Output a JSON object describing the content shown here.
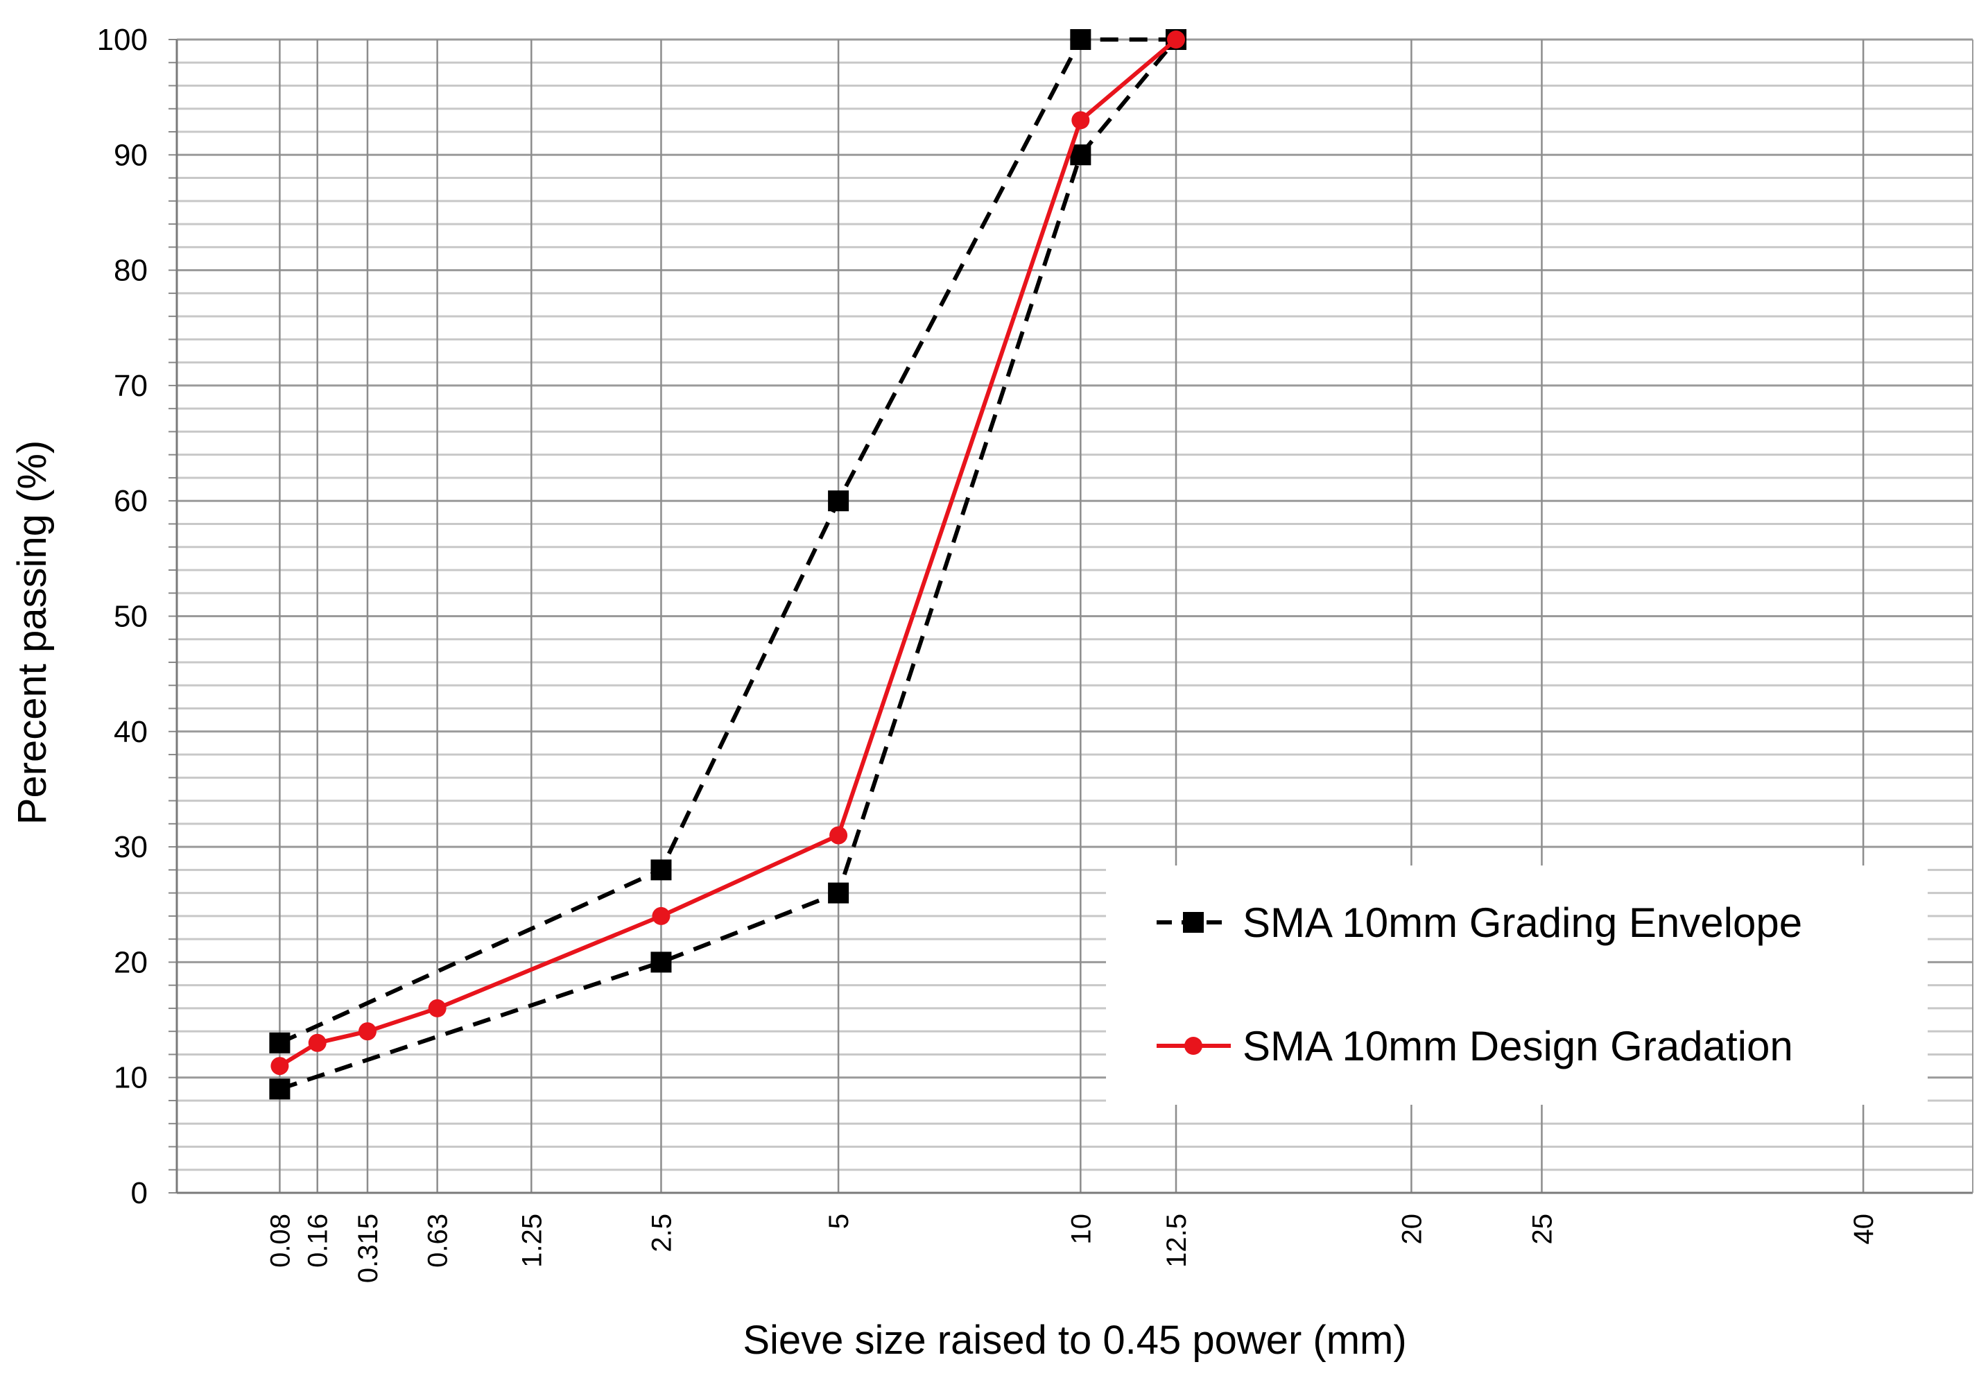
{
  "chart_data": {
    "type": "line",
    "title": "",
    "xlabel": "Sieve size raised to 0.45 power  (mm)",
    "ylabel": "Perecent passing (%)",
    "x_scale": "power 0.45",
    "xlim": [
      0,
      46
    ],
    "ylim": [
      0,
      100
    ],
    "yticks": [
      0,
      10,
      20,
      30,
      40,
      50,
      60,
      70,
      80,
      90,
      100
    ],
    "y_minor_step": 2,
    "grid": true,
    "x_ticks": [
      {
        "value": 0.08,
        "label": "0.08"
      },
      {
        "value": 0.16,
        "label": "0.16"
      },
      {
        "value": 0.315,
        "label": "0.315"
      },
      {
        "value": 0.63,
        "label": "0.63"
      },
      {
        "value": 1.25,
        "label": "1.25"
      },
      {
        "value": 2.5,
        "label": "2.5"
      },
      {
        "value": 5,
        "label": "5"
      },
      {
        "value": 10,
        "label": "10"
      },
      {
        "value": 12.5,
        "label": "12.5"
      },
      {
        "value": 20,
        "label": "20"
      },
      {
        "value": 25,
        "label": "25"
      },
      {
        "value": 40,
        "label": "40"
      }
    ],
    "legend_position": "lower-right",
    "series": [
      {
        "name": "SMA 10mm Grading Envelope",
        "style": "dashed",
        "marker": "square",
        "color": "#000000",
        "part": "lower",
        "x": [
          0.08,
          2.5,
          5,
          10,
          12.5
        ],
        "y": [
          9,
          20,
          26,
          90,
          100
        ]
      },
      {
        "name": "SMA 10mm Grading Envelope",
        "style": "dashed",
        "marker": "square",
        "color": "#000000",
        "part": "upper",
        "x": [
          0.08,
          2.5,
          5,
          10,
          12.5
        ],
        "y": [
          13,
          28,
          60,
          100,
          100
        ]
      },
      {
        "name": "SMA 10mm Design Gradation",
        "style": "solid",
        "marker": "circle",
        "color": "#e8141c",
        "x": [
          0.08,
          0.16,
          0.315,
          0.63,
          2.5,
          5,
          10,
          12.5
        ],
        "y": [
          11,
          13,
          14,
          16,
          24,
          31,
          93,
          100
        ]
      }
    ],
    "legend": [
      {
        "label": "SMA 10mm Grading Envelope",
        "style": "dashed",
        "marker": "square",
        "color": "#000000"
      },
      {
        "label": "SMA 10mm Design Gradation",
        "style": "solid",
        "marker": "circle",
        "color": "#e8141c"
      }
    ]
  }
}
